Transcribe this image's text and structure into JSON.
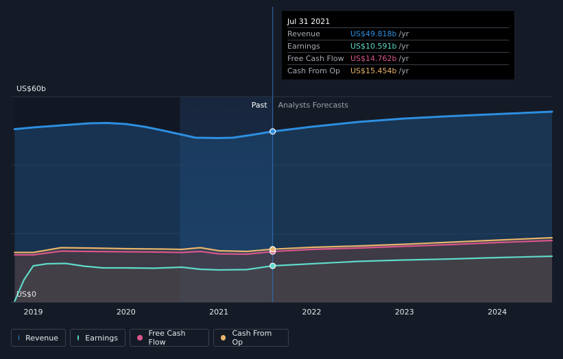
{
  "chart_data": {
    "type": "area",
    "y_axis": {
      "top_label": "US$60b",
      "bottom_label": "US$0",
      "ylim": [
        0,
        60
      ]
    },
    "x_axis": {
      "tick_labels": [
        "2019",
        "2020",
        "2021",
        "2022",
        "2023",
        "2024"
      ],
      "ticks": [
        2019,
        2020,
        2021,
        2022,
        2023,
        2024
      ],
      "xlim": [
        2018.76,
        2024.59
      ]
    },
    "grid": true,
    "divider_x": 2021.58,
    "past_label": "Past",
    "forecast_label": "Analysts Forecasts",
    "series": [
      {
        "name": "Revenue",
        "color": "#2e8fe0",
        "points": [
          [
            2018.8,
            50.5
          ],
          [
            2019.0,
            51.0
          ],
          [
            2019.2,
            51.4
          ],
          [
            2019.4,
            51.8
          ],
          [
            2019.6,
            52.2
          ],
          [
            2019.8,
            52.3
          ],
          [
            2020.0,
            52.0
          ],
          [
            2020.2,
            51.2
          ],
          [
            2020.4,
            50.1
          ],
          [
            2020.6,
            48.9
          ],
          [
            2020.75,
            48.0
          ],
          [
            2021.0,
            47.9
          ],
          [
            2021.15,
            48.0
          ],
          [
            2021.35,
            48.8
          ],
          [
            2021.58,
            49.818
          ],
          [
            2022.0,
            51.2
          ],
          [
            2022.5,
            52.6
          ],
          [
            2023.0,
            53.6
          ],
          [
            2023.5,
            54.3
          ],
          [
            2024.0,
            54.9
          ],
          [
            2024.59,
            55.6
          ]
        ]
      },
      {
        "name": "Earnings",
        "color": "#5fd9c8",
        "points": [
          [
            2018.8,
            0.3
          ],
          [
            2018.9,
            6.5
          ],
          [
            2019.0,
            10.6
          ],
          [
            2019.15,
            11.2
          ],
          [
            2019.35,
            11.3
          ],
          [
            2019.55,
            10.5
          ],
          [
            2019.75,
            10.0
          ],
          [
            2020.0,
            10.0
          ],
          [
            2020.3,
            9.9
          ],
          [
            2020.6,
            10.2
          ],
          [
            2020.8,
            9.6
          ],
          [
            2021.0,
            9.4
          ],
          [
            2021.3,
            9.5
          ],
          [
            2021.58,
            10.591
          ],
          [
            2022.0,
            11.2
          ],
          [
            2022.5,
            11.9
          ],
          [
            2023.0,
            12.3
          ],
          [
            2023.5,
            12.6
          ],
          [
            2024.0,
            13.0
          ],
          [
            2024.59,
            13.4
          ]
        ]
      },
      {
        "name": "Free Cash Flow",
        "color": "#d8568b",
        "points": [
          [
            2018.8,
            13.8
          ],
          [
            2019.0,
            13.8
          ],
          [
            2019.3,
            14.9
          ],
          [
            2019.6,
            14.8
          ],
          [
            2020.0,
            14.7
          ],
          [
            2020.4,
            14.6
          ],
          [
            2020.6,
            14.5
          ],
          [
            2020.8,
            14.8
          ],
          [
            2021.0,
            14.1
          ],
          [
            2021.3,
            14.0
          ],
          [
            2021.58,
            14.762
          ],
          [
            2022.0,
            15.4
          ],
          [
            2022.5,
            15.8
          ],
          [
            2023.0,
            16.3
          ],
          [
            2023.5,
            16.8
          ],
          [
            2024.0,
            17.4
          ],
          [
            2024.59,
            18.0
          ]
        ]
      },
      {
        "name": "Cash From Op",
        "color": "#e8b46d",
        "points": [
          [
            2018.8,
            14.5
          ],
          [
            2019.0,
            14.5
          ],
          [
            2019.3,
            15.9
          ],
          [
            2019.6,
            15.8
          ],
          [
            2020.0,
            15.6
          ],
          [
            2020.4,
            15.5
          ],
          [
            2020.6,
            15.4
          ],
          [
            2020.8,
            15.9
          ],
          [
            2021.0,
            15.0
          ],
          [
            2021.3,
            14.8
          ],
          [
            2021.58,
            15.454
          ],
          [
            2022.0,
            16.0
          ],
          [
            2022.5,
            16.4
          ],
          [
            2023.0,
            16.9
          ],
          [
            2023.5,
            17.5
          ],
          [
            2024.0,
            18.1
          ],
          [
            2024.59,
            18.8
          ]
        ]
      }
    ]
  },
  "tooltip": {
    "date": "Jul 31 2021",
    "rows": [
      {
        "label": "Revenue",
        "value": "US$49.818b",
        "unit": "/yr",
        "color": "#2e8fe0"
      },
      {
        "label": "Earnings",
        "value": "US$10.591b",
        "unit": "/yr",
        "color": "#5fd9c8"
      },
      {
        "label": "Free Cash Flow",
        "value": "US$14.762b",
        "unit": "/yr",
        "color": "#d8568b"
      },
      {
        "label": "Cash From Op",
        "value": "US$15.454b",
        "unit": "/yr",
        "color": "#e8b46d"
      }
    ]
  },
  "legend": [
    {
      "label": "Revenue",
      "color": "#2e8fe0"
    },
    {
      "label": "Earnings",
      "color": "#5fd9c8"
    },
    {
      "label": "Free Cash Flow",
      "color": "#d8568b"
    },
    {
      "label": "Cash From Op",
      "color": "#e8b46d"
    }
  ]
}
